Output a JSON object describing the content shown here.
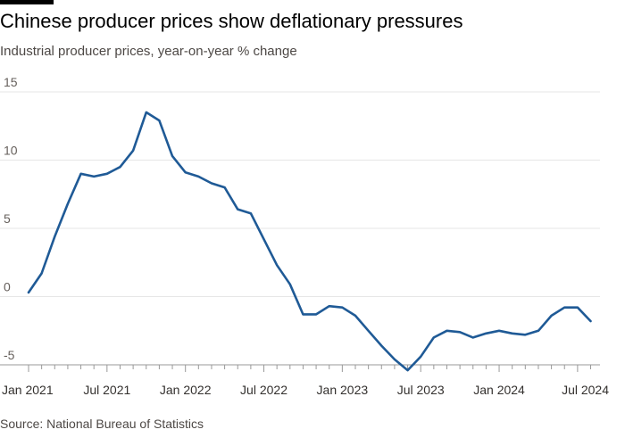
{
  "header": {
    "title": "Chinese producer prices show deflationary pressures",
    "subtitle": "Industrial producer prices, year-on-year % change"
  },
  "footer": {
    "source": "Source: National Bureau of Statistics"
  },
  "colors": {
    "line": "#1f5a96",
    "grid": "#e6e6e6",
    "brand_bar": "#000000"
  },
  "chart_data": {
    "type": "line",
    "title": "Chinese producer prices show deflationary pressures",
    "subtitle": "Industrial producer prices, year-on-year % change",
    "xlabel": "",
    "ylabel": "",
    "ylim": [
      -5,
      15
    ],
    "yticks": [
      15,
      10,
      5,
      0,
      -5
    ],
    "xtick_labels": [
      "Jan 2021",
      "Jul 2021",
      "Jan 2022",
      "Jul 2022",
      "Jan 2023",
      "Jul 2023",
      "Jan 2024",
      "Jul 2024"
    ],
    "grid": true,
    "legend": "none",
    "x": [
      "2021-01",
      "2021-02",
      "2021-03",
      "2021-04",
      "2021-05",
      "2021-06",
      "2021-07",
      "2021-08",
      "2021-09",
      "2021-10",
      "2021-11",
      "2021-12",
      "2022-01",
      "2022-02",
      "2022-03",
      "2022-04",
      "2022-05",
      "2022-06",
      "2022-07",
      "2022-08",
      "2022-09",
      "2022-10",
      "2022-11",
      "2022-12",
      "2023-01",
      "2023-02",
      "2023-03",
      "2023-04",
      "2023-05",
      "2023-06",
      "2023-07",
      "2023-08",
      "2023-09",
      "2023-10",
      "2023-11",
      "2023-12",
      "2024-01",
      "2024-02",
      "2024-03",
      "2024-04",
      "2024-05",
      "2024-06",
      "2024-07",
      "2024-08"
    ],
    "series": [
      {
        "values": [
          0.3,
          1.7,
          4.4,
          6.8,
          9.0,
          8.8,
          9.0,
          9.5,
          10.7,
          13.5,
          12.9,
          10.3,
          9.1,
          8.8,
          8.3,
          8.0,
          6.4,
          6.1,
          4.2,
          2.3,
          0.9,
          -1.3,
          -1.3,
          -0.7,
          -0.8,
          -1.4,
          -2.5,
          -3.6,
          -4.6,
          -5.4,
          -4.4,
          -3.0,
          -2.5,
          -2.6,
          -3.0,
          -2.7,
          -2.5,
          -2.7,
          -2.8,
          -2.5,
          -1.4,
          -0.8,
          -0.8,
          -1.8
        ]
      }
    ]
  },
  "search": {}
}
